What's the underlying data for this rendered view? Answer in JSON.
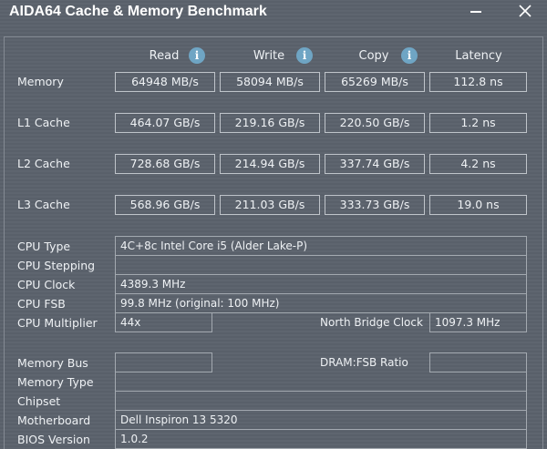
{
  "window": {
    "title": "AIDA64 Cache & Memory Benchmark",
    "minimize_glyph": "minimize-icon",
    "close_glyph": "close-icon"
  },
  "columns": {
    "read": "Read",
    "write": "Write",
    "copy": "Copy",
    "latency": "Latency",
    "info_glyph": "i"
  },
  "bench": [
    {
      "label": "Memory",
      "read": "64948 MB/s",
      "write": "58094 MB/s",
      "copy": "65269 MB/s",
      "latency": "112.8 ns"
    },
    {
      "label": "L1 Cache",
      "read": "464.07 GB/s",
      "write": "219.16 GB/s",
      "copy": "220.50 GB/s",
      "latency": "1.2 ns"
    },
    {
      "label": "L2 Cache",
      "read": "728.68 GB/s",
      "write": "214.94 GB/s",
      "copy": "337.74 GB/s",
      "latency": "4.2 ns"
    },
    {
      "label": "L3 Cache",
      "read": "568.96 GB/s",
      "write": "211.03 GB/s",
      "copy": "333.73 GB/s",
      "latency": "19.0 ns"
    }
  ],
  "info": {
    "cpu_type_label": "CPU Type",
    "cpu_type": "4C+8c Intel Core i5  (Alder Lake-P)",
    "cpu_stepping_label": "CPU Stepping",
    "cpu_stepping": "",
    "cpu_clock_label": "CPU Clock",
    "cpu_clock": "4389.3 MHz",
    "cpu_fsb_label": "CPU FSB",
    "cpu_fsb": "99.8 MHz  (original: 100 MHz)",
    "cpu_multiplier_label": "CPU Multiplier",
    "cpu_multiplier": "44x",
    "nb_clock_label": "North Bridge Clock",
    "nb_clock": "1097.3 MHz",
    "memory_bus_label": "Memory Bus",
    "memory_bus": "",
    "dram_fsb_label": "DRAM:FSB Ratio",
    "dram_fsb": "",
    "memory_type_label": "Memory Type",
    "memory_type": "",
    "chipset_label": "Chipset",
    "chipset": "",
    "motherboard_label": "Motherboard",
    "motherboard": "Dell Inspiron 13 5320",
    "bios_label": "BIOS Version",
    "bios": "1.0.2"
  }
}
